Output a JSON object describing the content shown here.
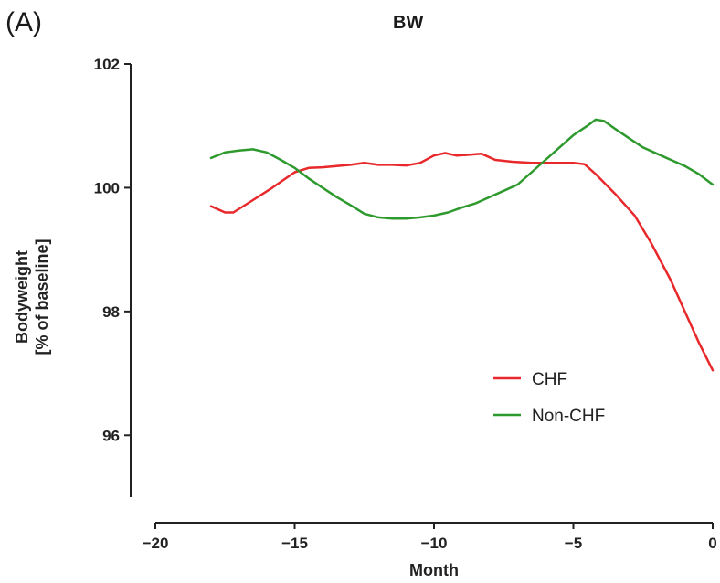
{
  "panel_label": "(A)",
  "chart_data": {
    "type": "line",
    "title": "BW",
    "xlabel": "Month",
    "ylabel_lines": [
      "Bodyweight",
      "[% of baseline]"
    ],
    "xlim": [
      -20,
      0
    ],
    "ylim": [
      95,
      102
    ],
    "xticks": [
      -20,
      -15,
      -10,
      -5,
      0
    ],
    "xtick_labels": [
      "−20",
      "−15",
      "−10",
      "−5",
      "0"
    ],
    "yticks": [
      96,
      98,
      100,
      102
    ],
    "ytick_labels": [
      "96",
      "98",
      "100",
      "102"
    ],
    "grid": false,
    "legend_position": "bottom-right",
    "series": [
      {
        "name": "CHF",
        "color": "#e8282a",
        "x": [
          -18,
          -17.5,
          -17.2,
          -16.5,
          -15.8,
          -15,
          -14.5,
          -14,
          -13.5,
          -13,
          -12.5,
          -12,
          -11.5,
          -11,
          -10.5,
          -10,
          -9.6,
          -9.2,
          -8.8,
          -8.3,
          -7.8,
          -7.2,
          -6.5,
          -6,
          -5.5,
          -5,
          -4.6,
          -4.2,
          -3.5,
          -2.8,
          -2.2,
          -1.5,
          -1,
          -0.5,
          0
        ],
        "values": [
          99.7,
          99.6,
          99.6,
          99.8,
          100.0,
          100.25,
          100.32,
          100.33,
          100.35,
          100.37,
          100.4,
          100.37,
          100.37,
          100.36,
          100.4,
          100.52,
          100.56,
          100.52,
          100.53,
          100.55,
          100.45,
          100.42,
          100.4,
          100.4,
          100.4,
          100.4,
          100.38,
          100.22,
          99.9,
          99.55,
          99.1,
          98.5,
          98.0,
          97.5,
          97.05
        ]
      },
      {
        "name": "Non-CHF",
        "color": "#2e9a2e",
        "x": [
          -18,
          -17.5,
          -17,
          -16.5,
          -16,
          -15.5,
          -15,
          -14.5,
          -14,
          -13.5,
          -13,
          -12.5,
          -12,
          -11.5,
          -11,
          -10.5,
          -10,
          -9.5,
          -9,
          -8.5,
          -8,
          -7.5,
          -7,
          -6.5,
          -6,
          -5.5,
          -5,
          -4.5,
          -4.2,
          -3.9,
          -3.5,
          -3,
          -2.5,
          -2,
          -1.5,
          -1,
          -0.5,
          0
        ],
        "values": [
          100.48,
          100.57,
          100.6,
          100.62,
          100.57,
          100.45,
          100.32,
          100.15,
          100.0,
          99.85,
          99.72,
          99.58,
          99.52,
          99.5,
          99.5,
          99.52,
          99.55,
          99.6,
          99.68,
          99.75,
          99.85,
          99.95,
          100.05,
          100.25,
          100.45,
          100.65,
          100.85,
          101.0,
          101.1,
          101.08,
          100.95,
          100.8,
          100.65,
          100.55,
          100.45,
          100.35,
          100.22,
          100.05
        ]
      }
    ]
  }
}
